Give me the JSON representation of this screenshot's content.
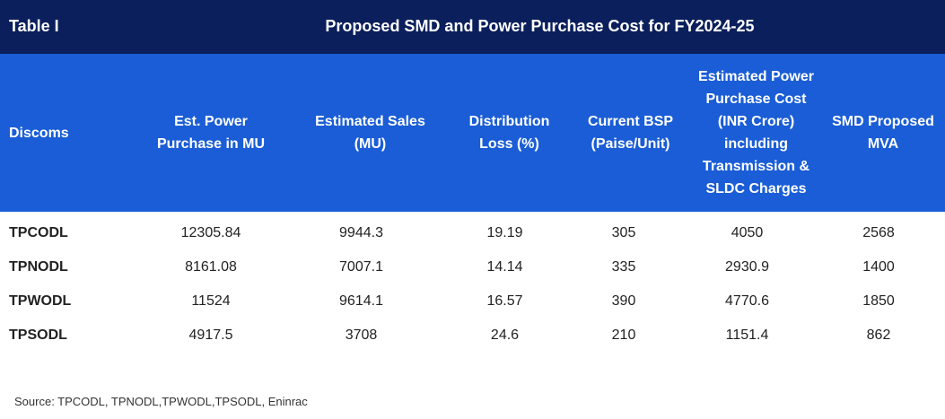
{
  "title": {
    "label": "Table I",
    "text": "Proposed SMD and Power Purchase Cost for FY2024-25"
  },
  "headers": [
    "Discoms",
    "Est. Power Purchase in MU",
    "Estimated Sales (MU)",
    "Distribution Loss (%)",
    "Current BSP (Paise/Unit)",
    "Estimated Power Purchase Cost (INR Crore) including Transmission & SLDC Charges",
    "SMD Proposed MVA"
  ],
  "rows": [
    [
      "TPCODL",
      "12305.84",
      "9944.3",
      "19.19",
      "305",
      "4050",
      "2568"
    ],
    [
      "TPNODL",
      "8161.08",
      "7007.1",
      "14.14",
      "335",
      "2930.9",
      "1400"
    ],
    [
      "TPWODL",
      "11524",
      "9614.1",
      "16.57",
      "390",
      "4770.6",
      "1850"
    ],
    [
      "TPSODL",
      "4917.5",
      "3708",
      "24.6",
      "210",
      "1151.4",
      "862"
    ]
  ],
  "source": "Source: TPCODL, TPNODL,TPWODL,TPSODL, Eninrac",
  "colors": {
    "title_bg": "#0b1f5c",
    "header_bg": "#1a5dd6"
  }
}
